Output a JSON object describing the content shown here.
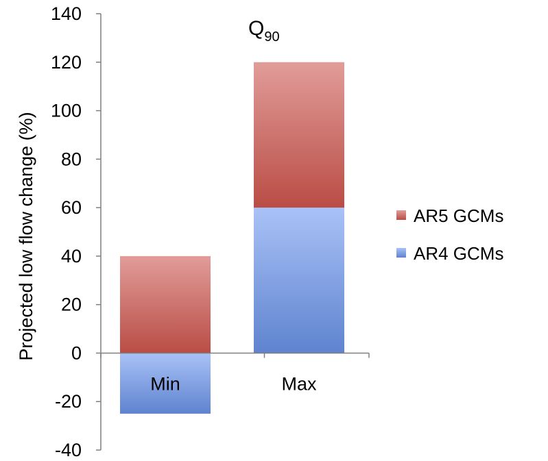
{
  "chart_data": {
    "type": "bar",
    "stacked": true,
    "title": "Q",
    "title_subscript": "90",
    "xlabel": "",
    "ylabel": "Projected  low flow change (%)",
    "categories": [
      "Min",
      "Max"
    ],
    "ylim": [
      -40,
      140
    ],
    "yticks": [
      "140",
      "120",
      "100",
      "80",
      "60",
      "40",
      "20",
      "0",
      "-20",
      "-40"
    ],
    "yticks_values": [
      140,
      120,
      100,
      80,
      60,
      40,
      20,
      0,
      -20,
      -40
    ],
    "grid": false,
    "legend_position": "right",
    "series": [
      {
        "name": "AR4 GCMs",
        "segments": [
          {
            "category": "Min",
            "from": -25,
            "to": 0
          },
          {
            "category": "Max",
            "from": 0,
            "to": 60
          }
        ],
        "color_light": "#a9c2f7",
        "color_dark": "#5f83cf"
      },
      {
        "name": "AR5 GCMs",
        "segments": [
          {
            "category": "Min",
            "from": 0,
            "to": 40
          },
          {
            "category": "Max",
            "from": 60,
            "to": 120
          }
        ],
        "color_light": "#e19c99",
        "color_dark": "#b94d45"
      }
    ],
    "legend_order": [
      "AR5 GCMs",
      "AR4 GCMs"
    ]
  }
}
